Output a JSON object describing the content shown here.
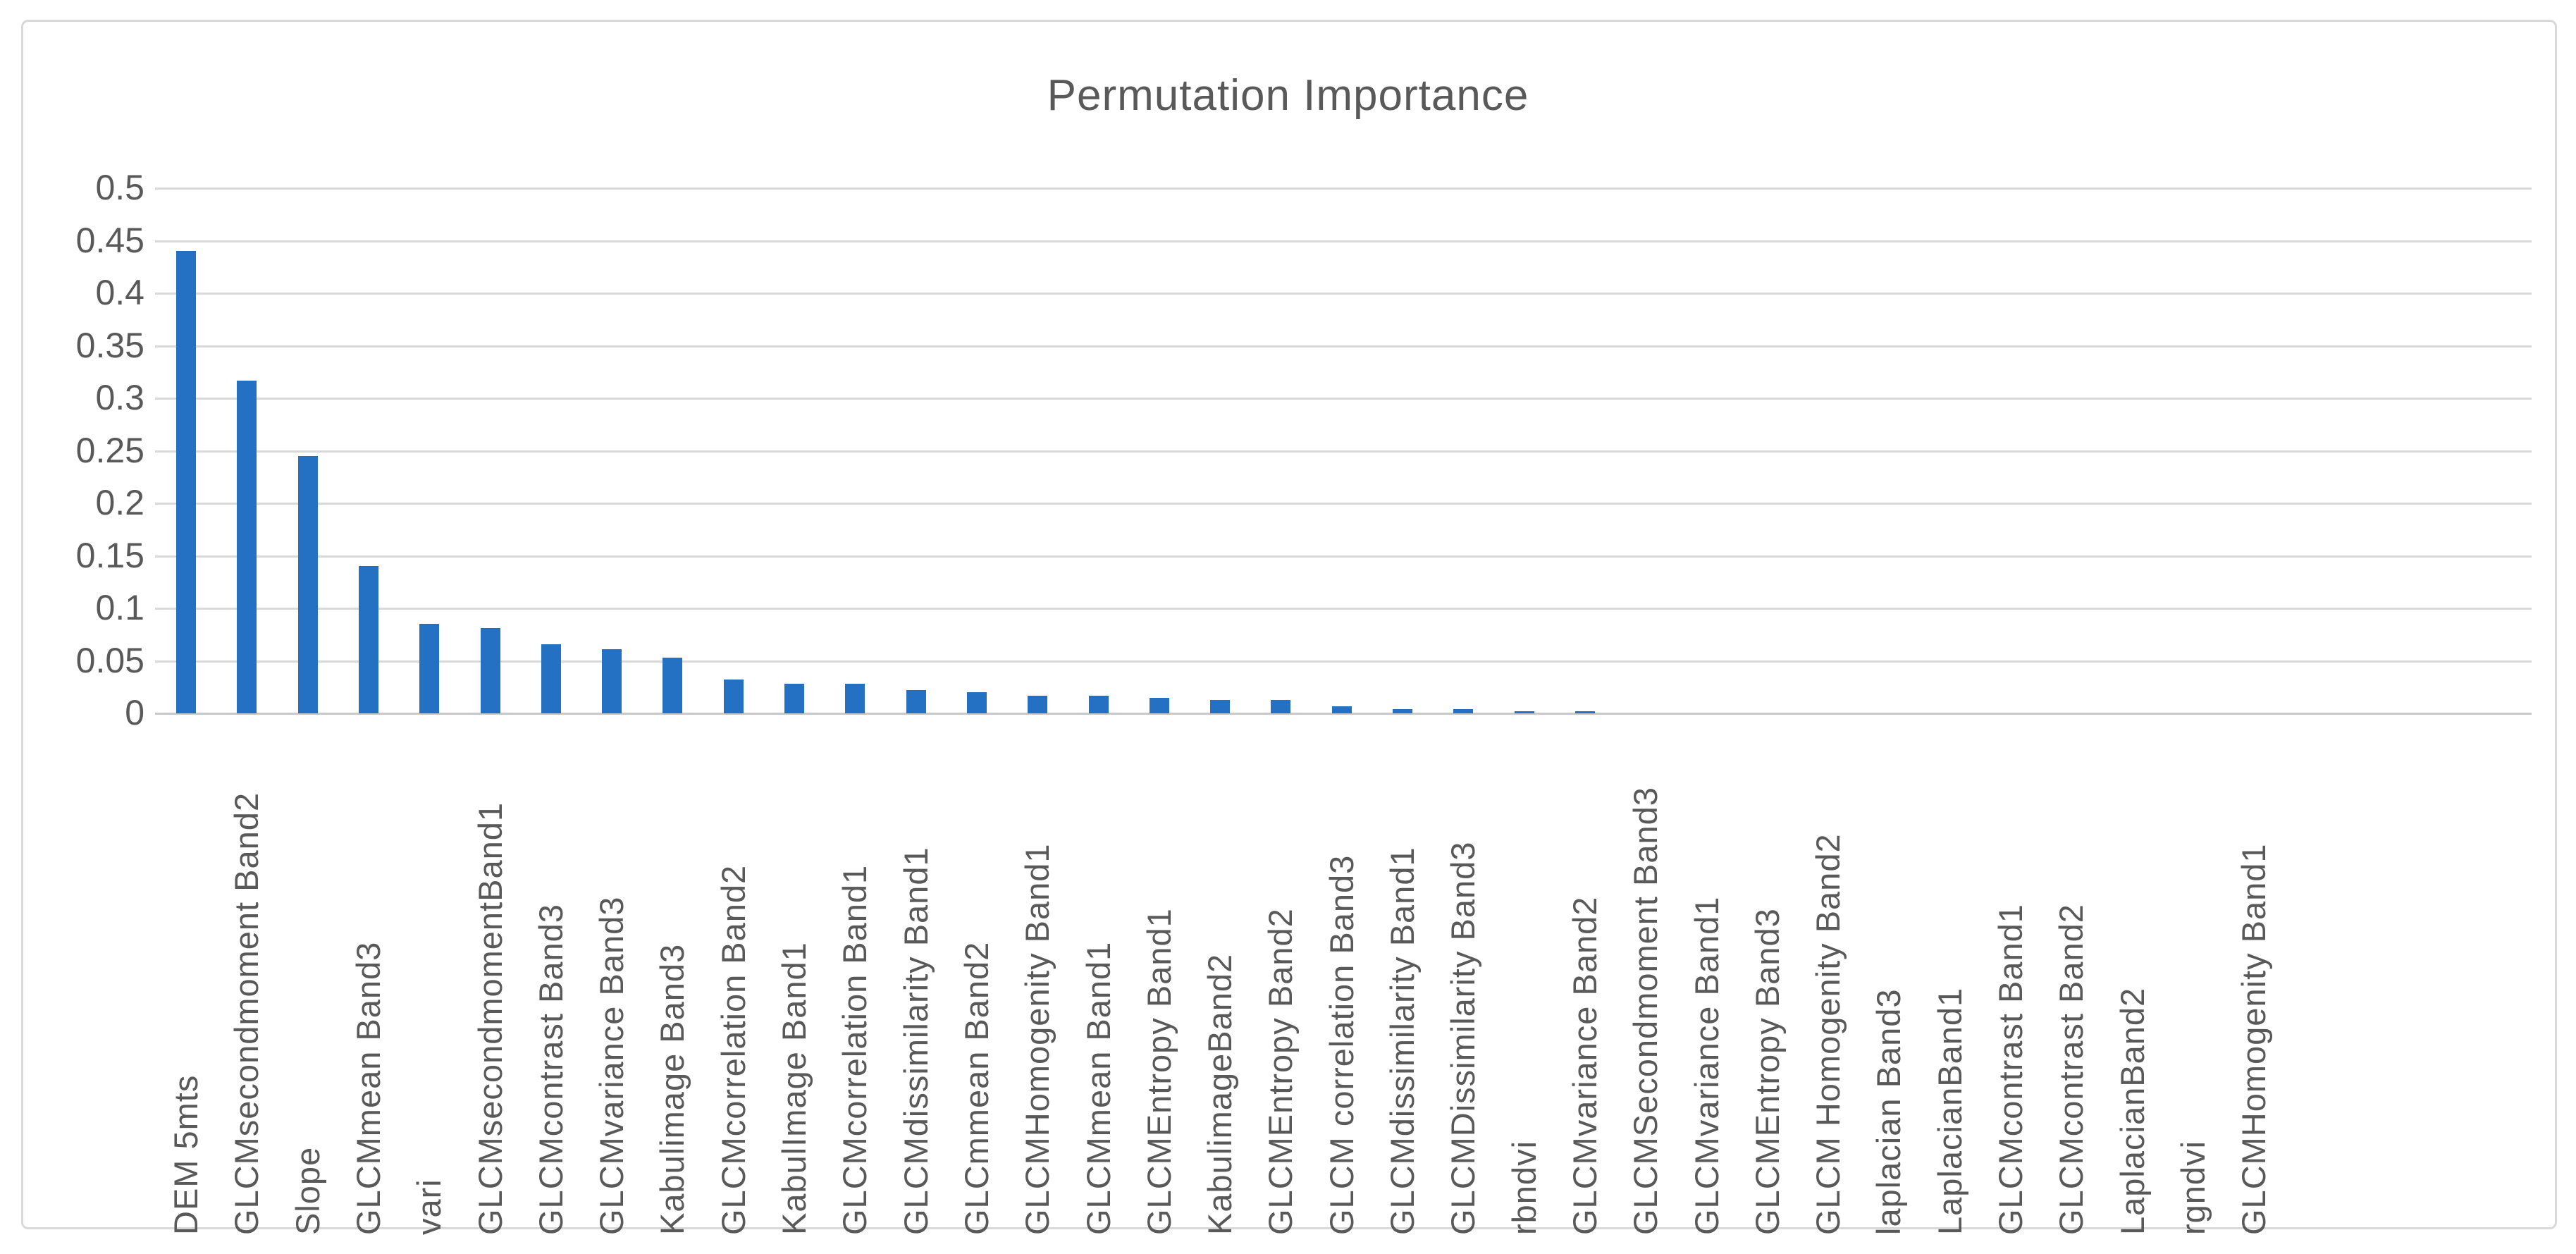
{
  "chart_data": {
    "type": "bar",
    "title": "Permutation Importance",
    "categories": [
      "DEM 5mts",
      "GLCMsecondmoment Band2",
      "Slope",
      "GLCMmean Band3",
      "vari",
      "GLCMsecondmomentBand1",
      "GLCMcontrast Band3",
      "GLCMvariance Band3",
      "Kabulimage Band3",
      "GLCMcorrelation Band2",
      "KabulImage Band1",
      "GLCMcorrelation Band1",
      "GLCMdissimilarity Band1",
      "GLCmmean Band2",
      "GLCMHomogenity Band1",
      "GLCMmean Band1",
      "GLCMEntropy Band1",
      "KabulimageBand2",
      "GLCMEntropy Band2",
      "GLCM correlation Band3",
      "GLCMdissimilarity Band1",
      "GLCMDissimilarity Band3",
      "rbndvi",
      "GLCMvariance Band2",
      "GLCMSecondmoment Band3",
      "GLCMvariance Band1",
      "GLCMEntropy Band3",
      "GLCM Homogenity Band2",
      "laplacian Band3",
      "LaplacianBand1",
      "GLCMcontrast Band1",
      "GLCMcontrast Band2",
      "LaplacianBand2",
      "rgndvi",
      "GLCMHomogenity Band1"
    ],
    "values": [
      0.44,
      0.317,
      0.245,
      0.14,
      0.085,
      0.081,
      0.066,
      0.061,
      0.053,
      0.032,
      0.028,
      0.028,
      0.022,
      0.02,
      0.017,
      0.017,
      0.015,
      0.013,
      0.013,
      0.007,
      0.004,
      0.004,
      0.002,
      0.002,
      0,
      0,
      0,
      0,
      0,
      0,
      0,
      0,
      0,
      0,
      0
    ],
    "xlabel": "",
    "ylabel": "",
    "ylim": [
      0,
      0.5
    ],
    "ytick_labels": [
      "0.5",
      "0.45",
      "0.4",
      "0.35",
      "0.3",
      "0.25",
      "0.2",
      "0.15",
      "0.1",
      "0.05",
      "0"
    ],
    "grid": "horizontal",
    "legend_position": "none",
    "bar_color": "#2471c3",
    "text_color": "#595959",
    "grid_color": "#d9d9d9",
    "x_label_rotation_deg": 90
  }
}
